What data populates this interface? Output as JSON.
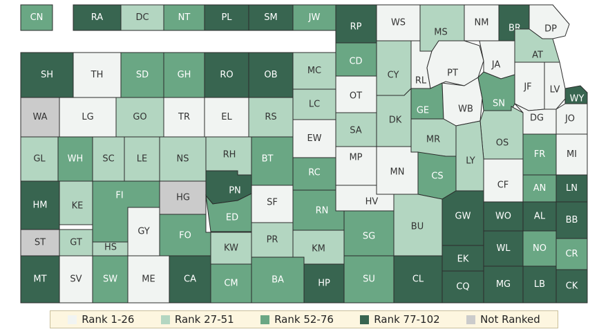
{
  "colors": {
    "rank_1_26": "#f1f4f2",
    "rank_27_51": "#b3d6c1",
    "rank_52_76": "#6aa784",
    "rank_77_102": "#386550",
    "not_ranked": "#cbcbcb"
  },
  "legend": [
    {
      "key": "rank_1_26",
      "label": "Rank 1-26"
    },
    {
      "key": "rank_27_51",
      "label": "Rank 27-51"
    },
    {
      "key": "rank_52_76",
      "label": "Rank 52-76"
    },
    {
      "key": "rank_77_102",
      "label": "Rank 77-102"
    },
    {
      "key": "not_ranked",
      "label": "Not Ranked"
    }
  ],
  "counties": [
    {
      "label": "CN",
      "cat": "rank_52_76"
    },
    {
      "label": "RA",
      "cat": "rank_77_102"
    },
    {
      "label": "DC",
      "cat": "rank_27_51"
    },
    {
      "label": "NT",
      "cat": "rank_52_76"
    },
    {
      "label": "PL",
      "cat": "rank_77_102"
    },
    {
      "label": "SM",
      "cat": "rank_77_102"
    },
    {
      "label": "JW",
      "cat": "rank_52_76"
    },
    {
      "label": "RP",
      "cat": "rank_77_102"
    },
    {
      "label": "WS",
      "cat": "rank_1_26"
    },
    {
      "label": "MS",
      "cat": "rank_27_51"
    },
    {
      "label": "NM",
      "cat": "rank_1_26"
    },
    {
      "label": "BR",
      "cat": "rank_77_102"
    },
    {
      "label": "DP",
      "cat": "rank_1_26"
    },
    {
      "label": "SH",
      "cat": "rank_77_102"
    },
    {
      "label": "TH",
      "cat": "rank_1_26"
    },
    {
      "label": "SD",
      "cat": "rank_52_76"
    },
    {
      "label": "GH",
      "cat": "rank_52_76"
    },
    {
      "label": "RO",
      "cat": "rank_77_102"
    },
    {
      "label": "OB",
      "cat": "rank_77_102"
    },
    {
      "label": "MC",
      "cat": "rank_27_51"
    },
    {
      "label": "CD",
      "cat": "rank_52_76"
    },
    {
      "label": "CY",
      "cat": "rank_27_51"
    },
    {
      "label": "RL",
      "cat": "rank_1_26"
    },
    {
      "label": "PT",
      "cat": "rank_1_26"
    },
    {
      "label": "JA",
      "cat": "rank_1_26"
    },
    {
      "label": "AT",
      "cat": "rank_27_51"
    },
    {
      "label": "JF",
      "cat": "rank_1_26"
    },
    {
      "label": "LV",
      "cat": "rank_1_26"
    },
    {
      "label": "WY",
      "cat": "rank_77_102"
    },
    {
      "label": "WA",
      "cat": "not_ranked"
    },
    {
      "label": "LG",
      "cat": "rank_1_26"
    },
    {
      "label": "GO",
      "cat": "rank_27_51"
    },
    {
      "label": "TR",
      "cat": "rank_1_26"
    },
    {
      "label": "EL",
      "cat": "rank_1_26"
    },
    {
      "label": "RS",
      "cat": "rank_27_51"
    },
    {
      "label": "LC",
      "cat": "rank_27_51"
    },
    {
      "label": "OT",
      "cat": "rank_1_26"
    },
    {
      "label": "SA",
      "cat": "rank_27_51"
    },
    {
      "label": "DK",
      "cat": "rank_27_51"
    },
    {
      "label": "GE",
      "cat": "rank_52_76"
    },
    {
      "label": "WB",
      "cat": "rank_1_26"
    },
    {
      "label": "SN",
      "cat": "rank_52_76"
    },
    {
      "label": "DG",
      "cat": "rank_1_26"
    },
    {
      "label": "JO",
      "cat": "rank_1_26"
    },
    {
      "label": "EW",
      "cat": "rank_1_26"
    },
    {
      "label": "MR",
      "cat": "rank_27_51"
    },
    {
      "label": "OS",
      "cat": "rank_27_51"
    },
    {
      "label": "GL",
      "cat": "rank_27_51"
    },
    {
      "label": "WH",
      "cat": "rank_52_76"
    },
    {
      "label": "SC",
      "cat": "rank_27_51"
    },
    {
      "label": "LE",
      "cat": "rank_27_51"
    },
    {
      "label": "NS",
      "cat": "rank_27_51"
    },
    {
      "label": "RH",
      "cat": "rank_27_51"
    },
    {
      "label": "BT",
      "cat": "rank_52_76"
    },
    {
      "label": "RC",
      "cat": "rank_52_76"
    },
    {
      "label": "MP",
      "cat": "rank_1_26"
    },
    {
      "label": "MN",
      "cat": "rank_1_26"
    },
    {
      "label": "CS",
      "cat": "rank_52_76"
    },
    {
      "label": "LY",
      "cat": "rank_27_51"
    },
    {
      "label": "FR",
      "cat": "rank_52_76"
    },
    {
      "label": "MI",
      "cat": "rank_1_26"
    },
    {
      "label": "CF",
      "cat": "rank_1_26"
    },
    {
      "label": "AN",
      "cat": "rank_52_76"
    },
    {
      "label": "LN",
      "cat": "rank_77_102"
    },
    {
      "label": "HM",
      "cat": "rank_77_102"
    },
    {
      "label": "KE",
      "cat": "rank_27_51"
    },
    {
      "label": "FI",
      "cat": "rank_52_76"
    },
    {
      "label": "HG",
      "cat": "not_ranked"
    },
    {
      "label": "PN",
      "cat": "rank_77_102"
    },
    {
      "label": "SF",
      "cat": "rank_1_26"
    },
    {
      "label": "HV",
      "cat": "rank_1_26"
    },
    {
      "label": "RN",
      "cat": "rank_52_76"
    },
    {
      "label": "ED",
      "cat": "rank_52_76"
    },
    {
      "label": "GY",
      "cat": "rank_1_26"
    },
    {
      "label": "BU",
      "cat": "rank_27_51"
    },
    {
      "label": "GW",
      "cat": "rank_77_102"
    },
    {
      "label": "WO",
      "cat": "rank_77_102"
    },
    {
      "label": "AL",
      "cat": "rank_77_102"
    },
    {
      "label": "BB",
      "cat": "rank_77_102"
    },
    {
      "label": "FO",
      "cat": "rank_52_76"
    },
    {
      "label": "PR",
      "cat": "rank_27_51"
    },
    {
      "label": "SG",
      "cat": "rank_52_76"
    },
    {
      "label": "ST",
      "cat": "not_ranked"
    },
    {
      "label": "GT",
      "cat": "rank_27_51"
    },
    {
      "label": "HS",
      "cat": "rank_27_51"
    },
    {
      "label": "KW",
      "cat": "rank_27_51"
    },
    {
      "label": "KM",
      "cat": "rank_27_51"
    },
    {
      "label": "WL",
      "cat": "rank_77_102"
    },
    {
      "label": "NO",
      "cat": "rank_52_76"
    },
    {
      "label": "CR",
      "cat": "rank_52_76"
    },
    {
      "label": "EK",
      "cat": "rank_77_102"
    },
    {
      "label": "MT",
      "cat": "rank_77_102"
    },
    {
      "label": "SV",
      "cat": "rank_1_26"
    },
    {
      "label": "SW",
      "cat": "rank_52_76"
    },
    {
      "label": "ME",
      "cat": "rank_1_26"
    },
    {
      "label": "CA",
      "cat": "rank_77_102"
    },
    {
      "label": "CM",
      "cat": "rank_52_76"
    },
    {
      "label": "BA",
      "cat": "rank_52_76"
    },
    {
      "label": "HP",
      "cat": "rank_77_102"
    },
    {
      "label": "SU",
      "cat": "rank_52_76"
    },
    {
      "label": "CL",
      "cat": "rank_77_102"
    },
    {
      "label": "CQ",
      "cat": "rank_77_102"
    },
    {
      "label": "MG",
      "cat": "rank_77_102"
    },
    {
      "label": "LB",
      "cat": "rank_77_102"
    },
    {
      "label": "CK",
      "cat": "rank_77_102"
    }
  ]
}
